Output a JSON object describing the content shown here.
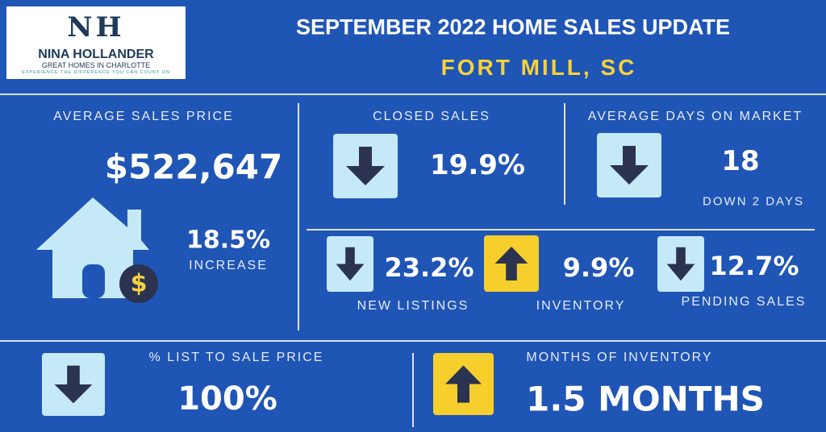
{
  "logo": {
    "monogram": "NH",
    "name": "NINA HOLLANDER",
    "tagline": "GREAT HOMES IN CHARLOTTE",
    "slogan": "EXPERIENCE THE DIFFERENCE YOU CAN COUNT ON"
  },
  "header": {
    "title": "SEPTEMBER 2022 HOME SALES UPDATE",
    "location": "FORT MILL, SC"
  },
  "stats": {
    "average_sales_price": {
      "label": "AVERAGE SALES PRICE",
      "value": "$522,647",
      "change": "18.5%",
      "change_label": "INCREASE",
      "icon_symbol": "$"
    },
    "closed_sales": {
      "label": "CLOSED SALES",
      "value": "19.9%",
      "trend": "down"
    },
    "average_days_on_market": {
      "label": "AVERAGE DAYS ON MARKET",
      "value": "18",
      "note": "DOWN 2 DAYS",
      "trend": "down"
    },
    "new_listings": {
      "label": "NEW LISTINGS",
      "value": "23.2%",
      "trend": "down"
    },
    "inventory": {
      "label": "INVENTORY",
      "value": "9.9%",
      "trend": "up"
    },
    "pending_sales": {
      "label": "PENDING SALES",
      "value": "12.7%",
      "trend": "down"
    },
    "list_to_sale_price": {
      "label": "% LIST TO SALE PRICE",
      "value": "100%",
      "trend": "down"
    },
    "months_of_inventory": {
      "label": "MONTHS OF INVENTORY",
      "value": "1.5 MONTHS",
      "trend": "up"
    }
  }
}
